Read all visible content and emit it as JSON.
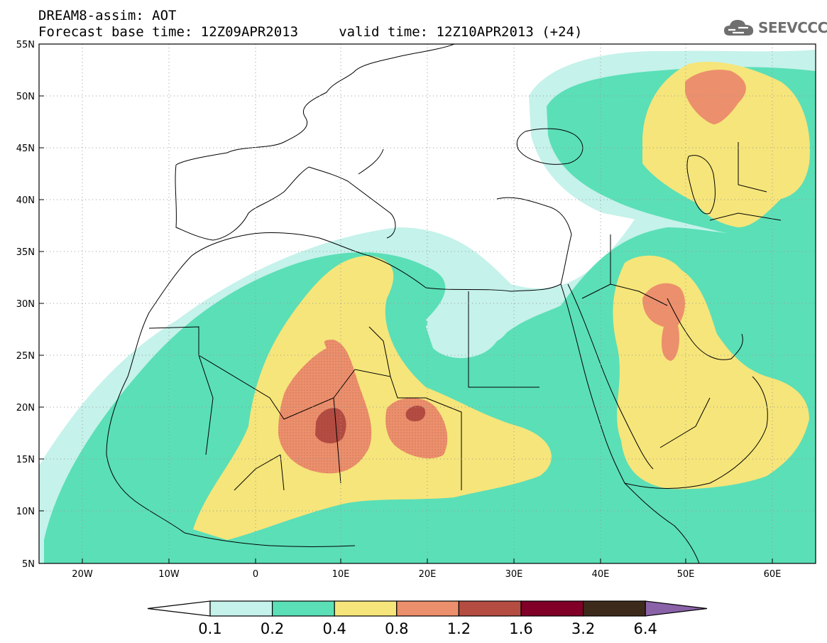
{
  "header": {
    "line1": "DREAM8-assim: AOT",
    "line2": "Forecast base time: 12Z09APR2013     valid time: 12Z10APR2013 (+24)"
  },
  "logo": {
    "text": "SEEVCCC",
    "icon": "cloud-icon"
  },
  "map": {
    "lat_labels": [
      "55N",
      "50N",
      "45N",
      "40N",
      "35N",
      "30N",
      "25N",
      "20N",
      "15N",
      "10N",
      "5N"
    ],
    "lon_labels": [
      "20W",
      "10W",
      "0",
      "10E",
      "20E",
      "30E",
      "40E",
      "50E",
      "60E"
    ],
    "extent": {
      "lon_min": -25,
      "lon_max": 65,
      "lat_min": 5,
      "lat_max": 55
    }
  },
  "colorbar": {
    "levels": [
      "0.1",
      "0.2",
      "0.4",
      "0.8",
      "1.2",
      "1.6",
      "3.2",
      "6.4"
    ],
    "colors": [
      "#ffffff",
      "#c5f2eb",
      "#5bdfb7",
      "#f6e57a",
      "#ec8f6c",
      "#b44c42",
      "#800028",
      "#3e2a1b",
      "#8a62a8"
    ]
  }
}
